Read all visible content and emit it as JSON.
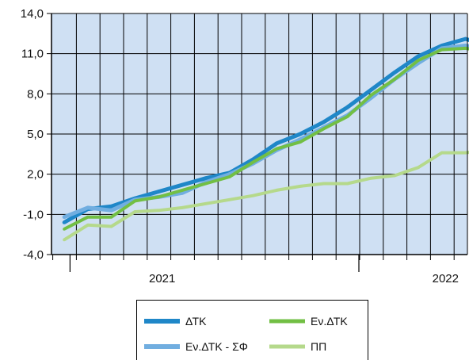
{
  "chart_data": {
    "type": "line",
    "title": "",
    "xlabel": "",
    "ylabel": "",
    "ylim": [
      -4.0,
      14.0
    ],
    "y_ticks": [
      -4.0,
      -1.0,
      2.0,
      5.0,
      8.0,
      11.0,
      14.0
    ],
    "y_tick_labels": [
      "-4,0",
      "-1,0",
      "2,0",
      "5,0",
      "8,0",
      "11,0",
      "14,0"
    ],
    "x_year_labels": [
      {
        "label": "2021",
        "month_index": 6.5
      },
      {
        "label": "2022",
        "month_index": 18.5
      }
    ],
    "x_year_separators": [
      0.5,
      12.5
    ],
    "month_count": 22,
    "grid": true,
    "legend_placement": "bottom",
    "background_color": "#cfe0f3",
    "series": [
      {
        "name": "ΔΤΚ",
        "color": "#1f87c8",
        "width": 5,
        "values": [
          -1.6,
          -0.6,
          -0.4,
          0.2,
          0.7,
          1.2,
          1.7,
          2.1,
          3.1,
          4.3,
          5.0,
          5.9,
          7.0,
          8.3,
          9.6,
          10.8,
          11.6,
          12.1,
          11.6,
          11.4,
          11.2
        ]
      },
      {
        "name": "Εν.ΔΤΚ - ΣΦ",
        "color": "#71aee0",
        "width": 5,
        "values": [
          -1.2,
          -0.5,
          -0.7,
          0.1,
          0.3,
          0.6,
          1.4,
          2.0,
          2.8,
          3.8,
          4.6,
          5.5,
          6.4,
          7.7,
          9.1,
          10.3,
          11.4,
          11.6,
          11.3,
          11.1,
          11.1
        ]
      },
      {
        "name": "Εν.ΔΤΚ",
        "color": "#72bf44",
        "width": 4,
        "values": [
          -2.1,
          -1.2,
          -1.2,
          0.0,
          0.3,
          0.8,
          1.3,
          1.8,
          2.9,
          3.9,
          4.4,
          5.4,
          6.3,
          7.9,
          9.1,
          10.5,
          11.3,
          11.4,
          11.1,
          11.0,
          11.1
        ]
      },
      {
        "name": "ΠΠ",
        "color": "#b5d98b",
        "width": 4,
        "values": [
          -2.9,
          -1.8,
          -1.9,
          -0.8,
          -0.7,
          -0.5,
          -0.2,
          0.1,
          0.4,
          0.8,
          1.1,
          1.3,
          1.3,
          1.7,
          1.9,
          2.5,
          3.6,
          3.6,
          3.8,
          4.4
        ]
      }
    ]
  }
}
